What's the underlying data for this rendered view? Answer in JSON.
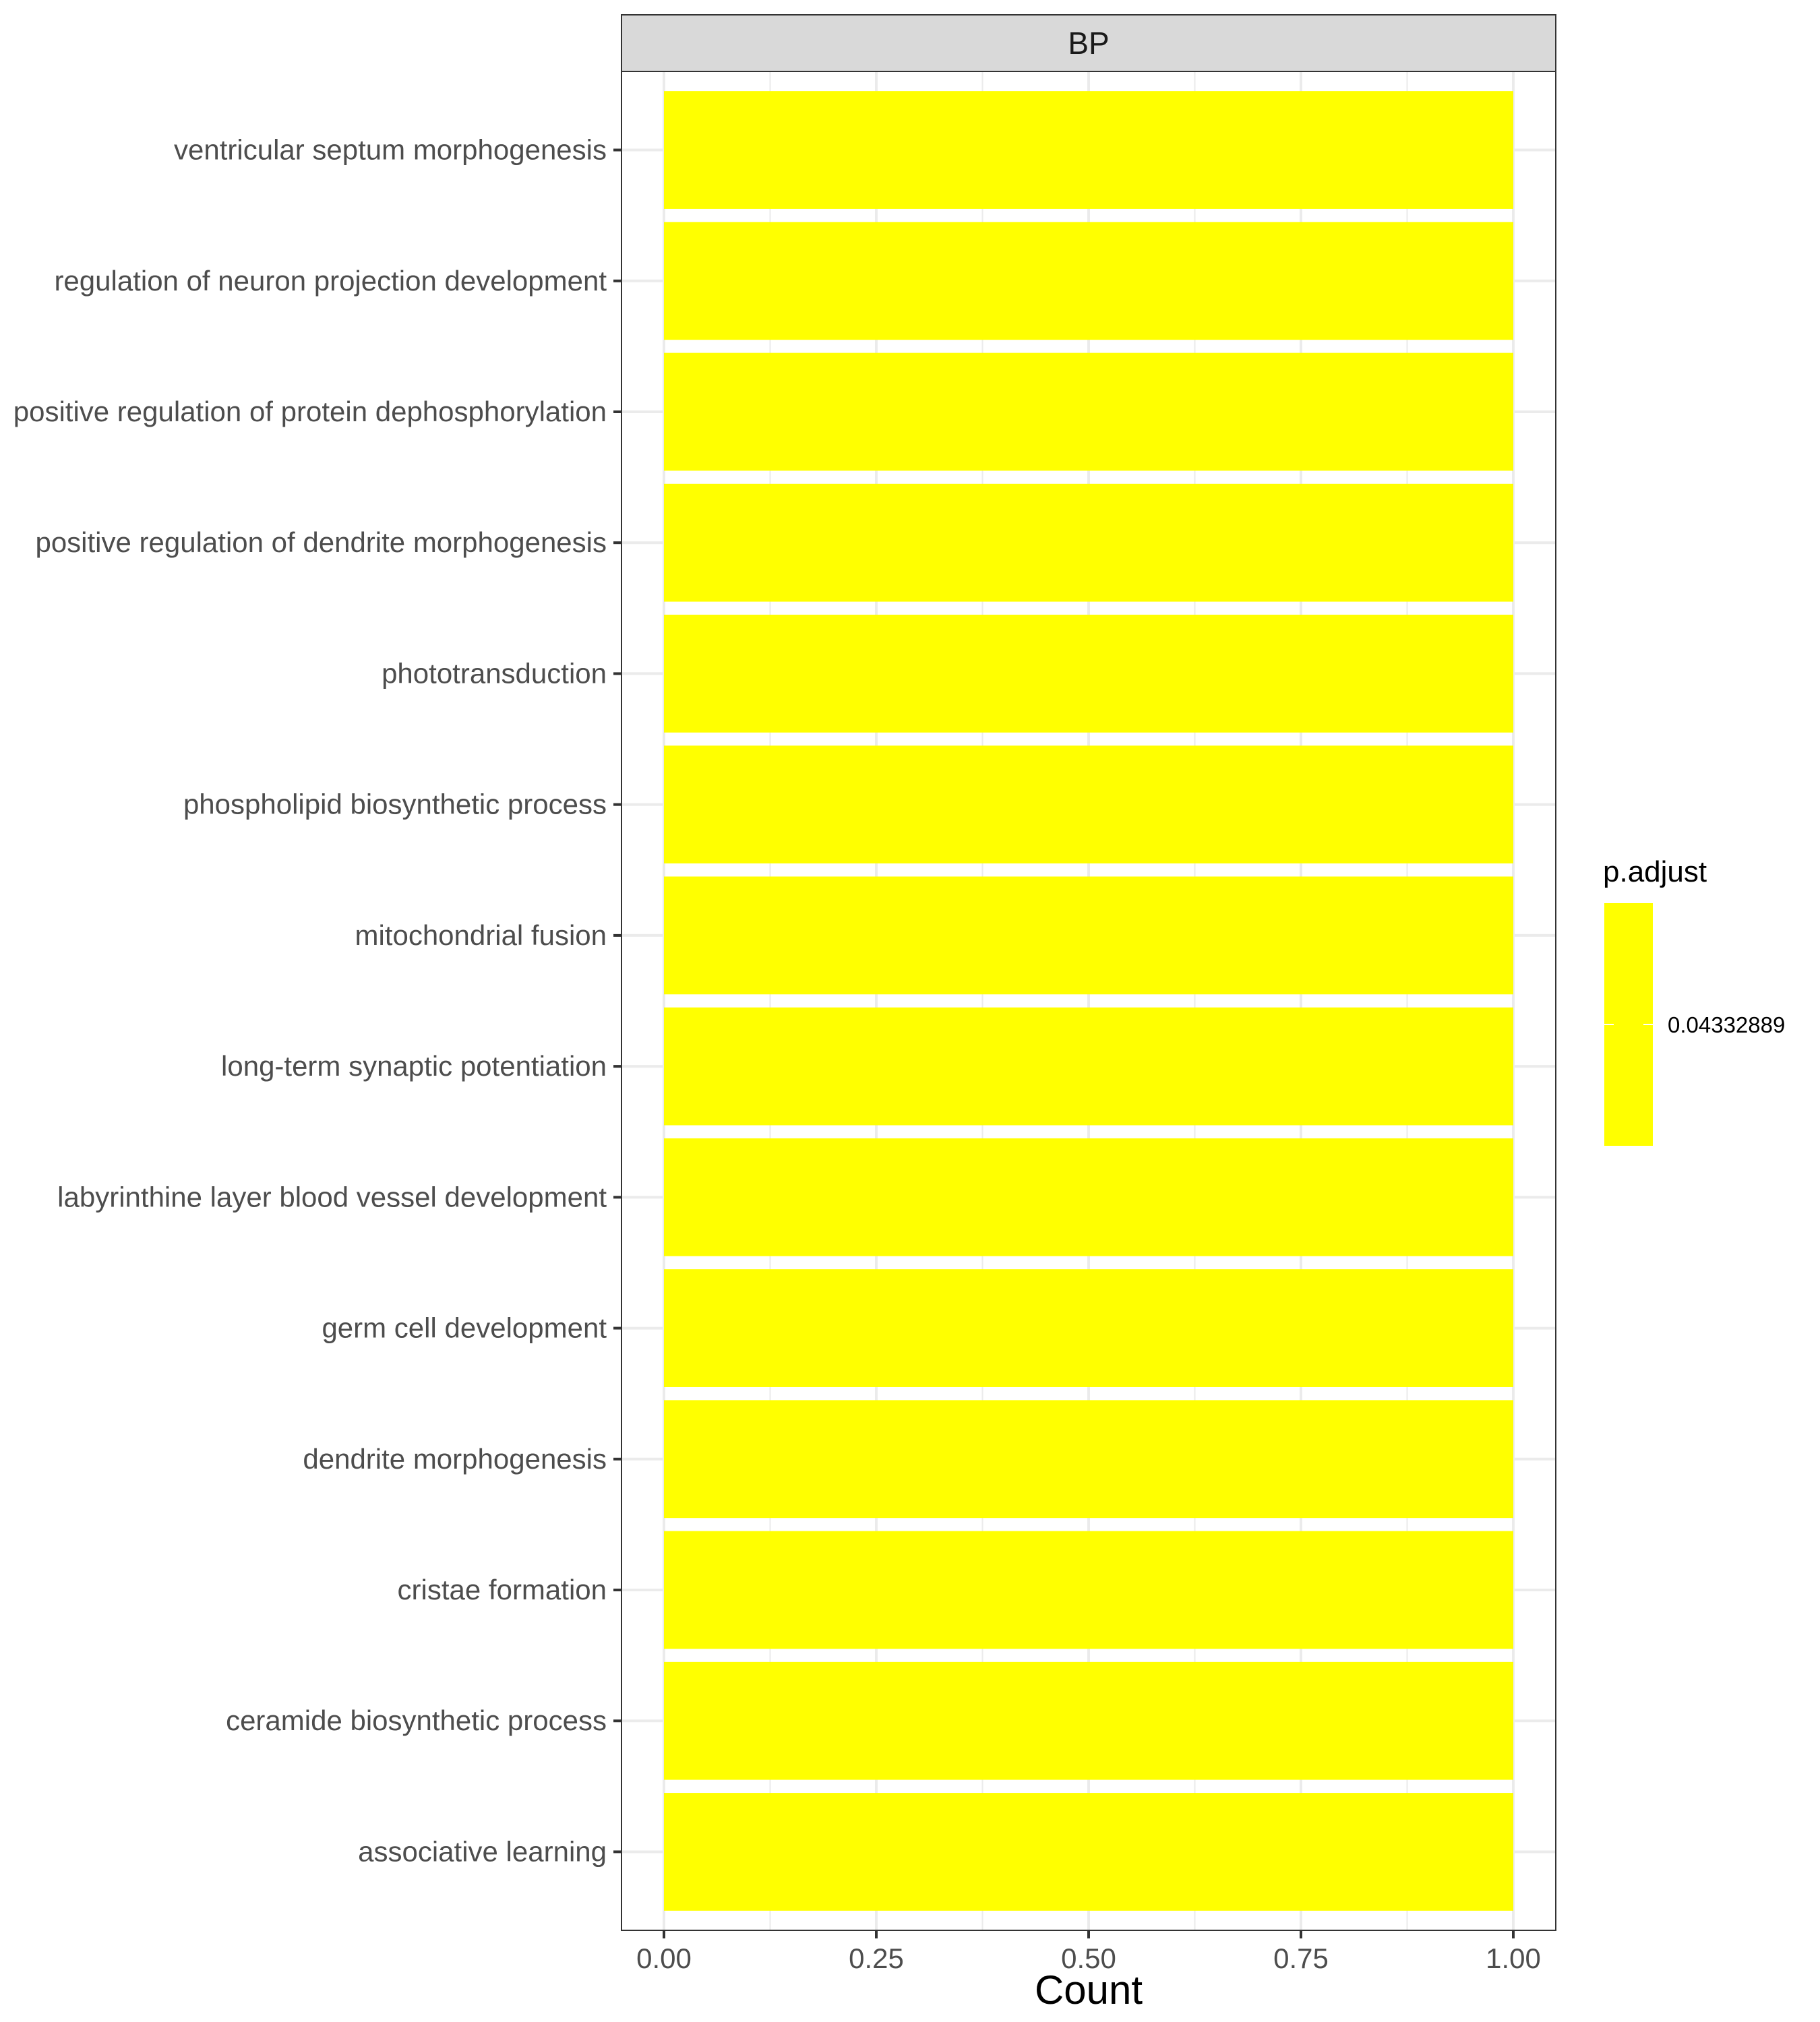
{
  "chart_data": {
    "type": "bar",
    "orientation": "horizontal",
    "facet": "BP",
    "categories": [
      "ventricular septum morphogenesis",
      "regulation of neuron projection development",
      "positive regulation of protein dephosphorylation",
      "positive regulation of dendrite morphogenesis",
      "phototransduction",
      "phospholipid biosynthetic process",
      "mitochondrial fusion",
      "long-term synaptic potentiation",
      "labyrinthine layer blood vessel development",
      "germ cell development",
      "dendrite morphogenesis",
      "cristae formation",
      "ceramide biosynthetic process",
      "associative learning"
    ],
    "values": [
      1,
      1,
      1,
      1,
      1,
      1,
      1,
      1,
      1,
      1,
      1,
      1,
      1,
      1
    ],
    "bar_color": "#FFFF00",
    "xlabel": "Count",
    "ylabel": "",
    "xlim": [
      -0.05,
      1.05
    ],
    "xticks": [
      0,
      0.25,
      0.5,
      0.75,
      1.0
    ],
    "xtick_labels": [
      "0.00",
      "0.25",
      "0.50",
      "0.75",
      "1.00"
    ],
    "grid": true,
    "legend": {
      "title": "p.adjust",
      "placement": "right",
      "values": [
        "0.04332889"
      ],
      "color": "#FFFF00"
    },
    "colors": {
      "panel_border": "#333333",
      "grid": "#ebebeb",
      "strip_fill": "#d9d9d9"
    }
  }
}
